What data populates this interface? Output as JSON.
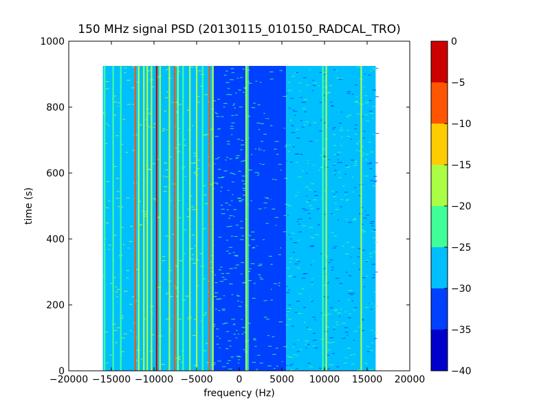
{
  "chart_data": {
    "type": "heatmap",
    "title": "150 MHz signal PSD (20130115_010150_RADCAL_TRO)",
    "xlabel": "frequency (Hz)",
    "ylabel": "time (s)",
    "xlim": [
      -20000,
      20000
    ],
    "ylim": [
      0,
      1000
    ],
    "xticks": [
      -20000,
      -15000,
      -10000,
      -5000,
      0,
      5000,
      10000,
      15000,
      20000
    ],
    "xtick_labels": [
      "−20000",
      "−15000",
      "−10000",
      "−5000",
      "0",
      "5000",
      "10000",
      "15000",
      "20000"
    ],
    "yticks": [
      0,
      200,
      400,
      600,
      800,
      1000
    ],
    "ytick_labels": [
      "0",
      "200",
      "400",
      "600",
      "800",
      "1000"
    ],
    "data_extent": {
      "freq": [
        -16000,
        16000
      ],
      "time": [
        0,
        925
      ]
    },
    "colorbar": {
      "levels": [
        -40,
        -35,
        -30,
        -25,
        -20,
        -15,
        -10,
        -5,
        0
      ],
      "tick_labels": [
        "−40",
        "−35",
        "−30",
        "−25",
        "−20",
        "−15",
        "−10",
        "−5",
        "0"
      ],
      "colors": [
        "#0000cc",
        "#0040ff",
        "#00bfff",
        "#40ff99",
        "#aaff44",
        "#ffcc00",
        "#ff5500",
        "#cc0000"
      ]
    },
    "background_bands": [
      {
        "from": -16000,
        "to": -12000,
        "level": -25
      },
      {
        "from": -12000,
        "to": -3000,
        "level": -25
      },
      {
        "from": -3000,
        "to": 1200,
        "level": -30
      },
      {
        "from": 1200,
        "to": 5500,
        "level": -30
      },
      {
        "from": 5500,
        "to": 16000,
        "level": -25
      }
    ],
    "narrow_lines": [
      {
        "freq": -15800,
        "level": -20
      },
      {
        "freq": -14800,
        "level": -20
      },
      {
        "freq": -13900,
        "level": -20
      },
      {
        "freq": -12200,
        "level": -5
      },
      {
        "freq": -11800,
        "level": -15
      },
      {
        "freq": -11200,
        "level": -15
      },
      {
        "freq": -10800,
        "level": -15
      },
      {
        "freq": -10300,
        "level": -15
      },
      {
        "freq": -9700,
        "level": 0
      },
      {
        "freq": -9300,
        "level": -15
      },
      {
        "freq": -8200,
        "level": -15
      },
      {
        "freq": -7600,
        "level": -5
      },
      {
        "freq": -7200,
        "level": -15
      },
      {
        "freq": -6600,
        "level": -20
      },
      {
        "freq": -5800,
        "level": -15
      },
      {
        "freq": -5000,
        "level": -15
      },
      {
        "freq": -4300,
        "level": -20
      },
      {
        "freq": -3500,
        "level": -5
      },
      {
        "freq": -3100,
        "level": -15
      },
      {
        "freq": 800,
        "level": -15
      },
      {
        "freq": 1000,
        "level": -20
      },
      {
        "freq": 9800,
        "level": -20
      },
      {
        "freq": 10200,
        "level": -15
      },
      {
        "freq": 14300,
        "level": -15
      }
    ]
  }
}
